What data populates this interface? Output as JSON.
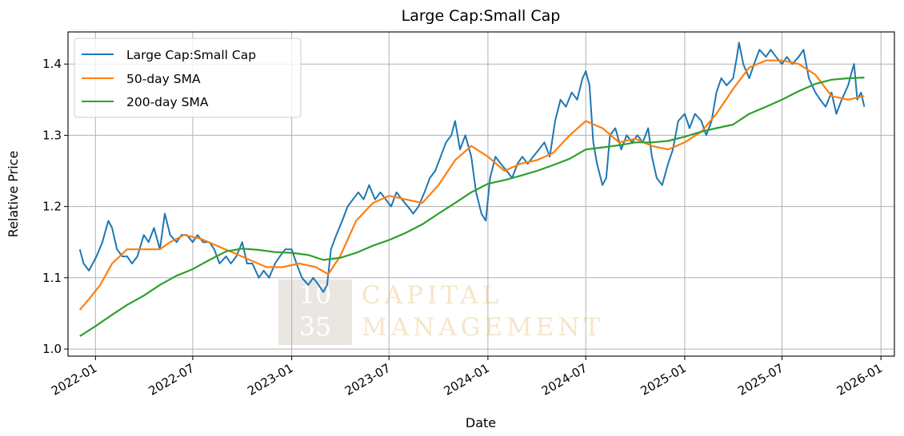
{
  "chart_data": {
    "type": "line",
    "title": "Large Cap:Small Cap",
    "xlabel": "Date",
    "ylabel": "Relative Price",
    "ylim": [
      0.99,
      1.445
    ],
    "xlim": [
      "2021-11-11",
      "2026-01-26"
    ],
    "grid": true,
    "legend_position": "top-left",
    "y_ticks": [
      1.0,
      1.1,
      1.2,
      1.3,
      1.4
    ],
    "y_tick_labels": [
      "1.0",
      "1.1",
      "1.2",
      "1.3",
      "1.4"
    ],
    "x_ticks": [
      "2022-01-01",
      "2022-07-01",
      "2023-01-01",
      "2023-07-01",
      "2024-01-01",
      "2024-07-01",
      "2025-01-01",
      "2025-07-01",
      "2026-01-01"
    ],
    "x_tick_labels": [
      "2022-01",
      "2022-07",
      "2023-01",
      "2023-07",
      "2024-01",
      "2024-07",
      "2025-01",
      "2025-07",
      "2026-01"
    ],
    "watermark": {
      "line1": "10",
      "line2": "35",
      "text1": "CAPITAL",
      "text2": "MANAGEMENT"
    },
    "series": [
      {
        "name": "Large Cap:Small Cap",
        "color": "#1f77b4",
        "points": [
          [
            "2021-12-03",
            1.14
          ],
          [
            "2021-12-10",
            1.12
          ],
          [
            "2021-12-20",
            1.11
          ],
          [
            "2022-01-03",
            1.13
          ],
          [
            "2022-01-14",
            1.15
          ],
          [
            "2022-01-25",
            1.18
          ],
          [
            "2022-02-01",
            1.17
          ],
          [
            "2022-02-10",
            1.14
          ],
          [
            "2022-02-20",
            1.13
          ],
          [
            "2022-03-01",
            1.13
          ],
          [
            "2022-03-10",
            1.12
          ],
          [
            "2022-03-20",
            1.13
          ],
          [
            "2022-04-01",
            1.16
          ],
          [
            "2022-04-10",
            1.15
          ],
          [
            "2022-04-20",
            1.17
          ],
          [
            "2022-05-01",
            1.14
          ],
          [
            "2022-05-10",
            1.19
          ],
          [
            "2022-05-20",
            1.16
          ],
          [
            "2022-06-01",
            1.15
          ],
          [
            "2022-06-10",
            1.16
          ],
          [
            "2022-06-20",
            1.16
          ],
          [
            "2022-07-01",
            1.15
          ],
          [
            "2022-07-10",
            1.16
          ],
          [
            "2022-07-20",
            1.15
          ],
          [
            "2022-08-01",
            1.15
          ],
          [
            "2022-08-10",
            1.14
          ],
          [
            "2022-08-20",
            1.12
          ],
          [
            "2022-09-01",
            1.13
          ],
          [
            "2022-09-10",
            1.12
          ],
          [
            "2022-09-20",
            1.13
          ],
          [
            "2022-10-01",
            1.15
          ],
          [
            "2022-10-10",
            1.12
          ],
          [
            "2022-10-20",
            1.12
          ],
          [
            "2022-11-01",
            1.1
          ],
          [
            "2022-11-10",
            1.11
          ],
          [
            "2022-11-20",
            1.1
          ],
          [
            "2022-12-01",
            1.12
          ],
          [
            "2022-12-10",
            1.13
          ],
          [
            "2022-12-20",
            1.14
          ],
          [
            "2023-01-01",
            1.14
          ],
          [
            "2023-01-10",
            1.12
          ],
          [
            "2023-01-20",
            1.1
          ],
          [
            "2023-02-01",
            1.09
          ],
          [
            "2023-02-10",
            1.1
          ],
          [
            "2023-02-20",
            1.09
          ],
          [
            "2023-03-01",
            1.08
          ],
          [
            "2023-03-08",
            1.09
          ],
          [
            "2023-03-15",
            1.14
          ],
          [
            "2023-03-25",
            1.16
          ],
          [
            "2023-04-05",
            1.18
          ],
          [
            "2023-04-15",
            1.2
          ],
          [
            "2023-04-25",
            1.21
          ],
          [
            "2023-05-05",
            1.22
          ],
          [
            "2023-05-15",
            1.21
          ],
          [
            "2023-05-25",
            1.23
          ],
          [
            "2023-06-05",
            1.21
          ],
          [
            "2023-06-15",
            1.22
          ],
          [
            "2023-06-25",
            1.21
          ],
          [
            "2023-07-05",
            1.2
          ],
          [
            "2023-07-15",
            1.22
          ],
          [
            "2023-07-25",
            1.21
          ],
          [
            "2023-08-05",
            1.2
          ],
          [
            "2023-08-15",
            1.19
          ],
          [
            "2023-08-25",
            1.2
          ],
          [
            "2023-09-05",
            1.22
          ],
          [
            "2023-09-15",
            1.24
          ],
          [
            "2023-09-25",
            1.25
          ],
          [
            "2023-10-05",
            1.27
          ],
          [
            "2023-10-15",
            1.29
          ],
          [
            "2023-10-25",
            1.3
          ],
          [
            "2023-11-01",
            1.32
          ],
          [
            "2023-11-10",
            1.28
          ],
          [
            "2023-11-20",
            1.3
          ],
          [
            "2023-12-01",
            1.27
          ],
          [
            "2023-12-10",
            1.22
          ],
          [
            "2023-12-20",
            1.19
          ],
          [
            "2023-12-28",
            1.18
          ],
          [
            "2024-01-05",
            1.24
          ],
          [
            "2024-01-15",
            1.27
          ],
          [
            "2024-01-25",
            1.26
          ],
          [
            "2024-02-05",
            1.25
          ],
          [
            "2024-02-15",
            1.24
          ],
          [
            "2024-02-25",
            1.26
          ],
          [
            "2024-03-05",
            1.27
          ],
          [
            "2024-03-15",
            1.26
          ],
          [
            "2024-03-25",
            1.27
          ],
          [
            "2024-04-05",
            1.28
          ],
          [
            "2024-04-15",
            1.29
          ],
          [
            "2024-04-25",
            1.27
          ],
          [
            "2024-05-05",
            1.32
          ],
          [
            "2024-05-15",
            1.35
          ],
          [
            "2024-05-25",
            1.34
          ],
          [
            "2024-06-05",
            1.36
          ],
          [
            "2024-06-15",
            1.35
          ],
          [
            "2024-06-25",
            1.38
          ],
          [
            "2024-07-01",
            1.39
          ],
          [
            "2024-07-08",
            1.37
          ],
          [
            "2024-07-15",
            1.29
          ],
          [
            "2024-07-22",
            1.26
          ],
          [
            "2024-08-01",
            1.23
          ],
          [
            "2024-08-08",
            1.24
          ],
          [
            "2024-08-15",
            1.3
          ],
          [
            "2024-08-25",
            1.31
          ],
          [
            "2024-09-05",
            1.28
          ],
          [
            "2024-09-15",
            1.3
          ],
          [
            "2024-09-25",
            1.29
          ],
          [
            "2024-10-05",
            1.3
          ],
          [
            "2024-10-15",
            1.29
          ],
          [
            "2024-10-25",
            1.31
          ],
          [
            "2024-11-01",
            1.27
          ],
          [
            "2024-11-10",
            1.24
          ],
          [
            "2024-11-20",
            1.23
          ],
          [
            "2024-12-01",
            1.26
          ],
          [
            "2024-12-10",
            1.28
          ],
          [
            "2024-12-20",
            1.32
          ],
          [
            "2025-01-01",
            1.33
          ],
          [
            "2025-01-10",
            1.31
          ],
          [
            "2025-01-20",
            1.33
          ],
          [
            "2025-02-01",
            1.32
          ],
          [
            "2025-02-10",
            1.3
          ],
          [
            "2025-02-20",
            1.32
          ],
          [
            "2025-03-01",
            1.36
          ],
          [
            "2025-03-10",
            1.38
          ],
          [
            "2025-03-20",
            1.37
          ],
          [
            "2025-04-01",
            1.38
          ],
          [
            "2025-04-08",
            1.41
          ],
          [
            "2025-04-12",
            1.43
          ],
          [
            "2025-04-20",
            1.4
          ],
          [
            "2025-05-01",
            1.38
          ],
          [
            "2025-05-10",
            1.4
          ],
          [
            "2025-05-20",
            1.42
          ],
          [
            "2025-06-01",
            1.41
          ],
          [
            "2025-06-10",
            1.42
          ],
          [
            "2025-06-20",
            1.41
          ],
          [
            "2025-07-01",
            1.4
          ],
          [
            "2025-07-10",
            1.41
          ],
          [
            "2025-07-20",
            1.4
          ],
          [
            "2025-08-01",
            1.41
          ],
          [
            "2025-08-10",
            1.42
          ],
          [
            "2025-08-20",
            1.38
          ],
          [
            "2025-09-01",
            1.36
          ],
          [
            "2025-09-10",
            1.35
          ],
          [
            "2025-09-20",
            1.34
          ],
          [
            "2025-10-01",
            1.36
          ],
          [
            "2025-10-10",
            1.33
          ],
          [
            "2025-10-20",
            1.35
          ],
          [
            "2025-11-01",
            1.37
          ],
          [
            "2025-11-08",
            1.39
          ],
          [
            "2025-11-12",
            1.4
          ],
          [
            "2025-11-18",
            1.35
          ],
          [
            "2025-11-25",
            1.36
          ],
          [
            "2025-12-01",
            1.34
          ]
        ]
      },
      {
        "name": "50-day SMA",
        "color": "#ff7f0e",
        "points": [
          [
            "2021-12-03",
            1.055
          ],
          [
            "2021-12-20",
            1.07
          ],
          [
            "2022-01-10",
            1.09
          ],
          [
            "2022-02-01",
            1.12
          ],
          [
            "2022-03-01",
            1.14
          ],
          [
            "2022-04-01",
            1.14
          ],
          [
            "2022-05-01",
            1.14
          ],
          [
            "2022-05-20",
            1.15
          ],
          [
            "2022-06-15",
            1.16
          ],
          [
            "2022-07-15",
            1.155
          ],
          [
            "2022-08-15",
            1.145
          ],
          [
            "2022-09-15",
            1.135
          ],
          [
            "2022-10-15",
            1.125
          ],
          [
            "2022-11-15",
            1.115
          ],
          [
            "2022-12-15",
            1.115
          ],
          [
            "2023-01-15",
            1.12
          ],
          [
            "2023-02-15",
            1.115
          ],
          [
            "2023-03-10",
            1.105
          ],
          [
            "2023-04-01",
            1.13
          ],
          [
            "2023-05-01",
            1.18
          ],
          [
            "2023-06-01",
            1.205
          ],
          [
            "2023-07-01",
            1.215
          ],
          [
            "2023-08-01",
            1.21
          ],
          [
            "2023-09-01",
            1.205
          ],
          [
            "2023-10-01",
            1.23
          ],
          [
            "2023-11-01",
            1.265
          ],
          [
            "2023-12-01",
            1.285
          ],
          [
            "2024-01-01",
            1.27
          ],
          [
            "2024-02-01",
            1.25
          ],
          [
            "2024-03-01",
            1.26
          ],
          [
            "2024-04-01",
            1.265
          ],
          [
            "2024-05-01",
            1.275
          ],
          [
            "2024-06-01",
            1.3
          ],
          [
            "2024-07-01",
            1.32
          ],
          [
            "2024-08-01",
            1.31
          ],
          [
            "2024-09-01",
            1.29
          ],
          [
            "2024-10-01",
            1.295
          ],
          [
            "2024-11-01",
            1.285
          ],
          [
            "2024-12-01",
            1.28
          ],
          [
            "2025-01-01",
            1.29
          ],
          [
            "2025-02-01",
            1.305
          ],
          [
            "2025-03-01",
            1.33
          ],
          [
            "2025-04-01",
            1.365
          ],
          [
            "2025-05-01",
            1.395
          ],
          [
            "2025-06-01",
            1.405
          ],
          [
            "2025-07-01",
            1.405
          ],
          [
            "2025-08-01",
            1.4
          ],
          [
            "2025-09-01",
            1.385
          ],
          [
            "2025-10-01",
            1.355
          ],
          [
            "2025-11-01",
            1.35
          ],
          [
            "2025-12-01",
            1.355
          ]
        ]
      },
      {
        "name": "200-day SMA",
        "color": "#2ca02c",
        "points": [
          [
            "2021-12-03",
            1.018
          ],
          [
            "2022-01-01",
            1.032
          ],
          [
            "2022-02-01",
            1.048
          ],
          [
            "2022-03-01",
            1.062
          ],
          [
            "2022-04-01",
            1.075
          ],
          [
            "2022-05-01",
            1.09
          ],
          [
            "2022-06-01",
            1.103
          ],
          [
            "2022-07-01",
            1.112
          ],
          [
            "2022-08-01",
            1.125
          ],
          [
            "2022-09-01",
            1.137
          ],
          [
            "2022-10-01",
            1.141
          ],
          [
            "2022-11-01",
            1.139
          ],
          [
            "2022-12-01",
            1.136
          ],
          [
            "2023-01-01",
            1.135
          ],
          [
            "2023-02-01",
            1.132
          ],
          [
            "2023-03-01",
            1.125
          ],
          [
            "2023-04-01",
            1.128
          ],
          [
            "2023-05-01",
            1.135
          ],
          [
            "2023-06-01",
            1.145
          ],
          [
            "2023-07-01",
            1.153
          ],
          [
            "2023-08-01",
            1.163
          ],
          [
            "2023-09-01",
            1.175
          ],
          [
            "2023-10-01",
            1.19
          ],
          [
            "2023-11-01",
            1.205
          ],
          [
            "2023-12-01",
            1.22
          ],
          [
            "2024-01-01",
            1.232
          ],
          [
            "2024-02-01",
            1.237
          ],
          [
            "2024-03-01",
            1.243
          ],
          [
            "2024-04-01",
            1.25
          ],
          [
            "2024-05-01",
            1.258
          ],
          [
            "2024-06-01",
            1.267
          ],
          [
            "2024-07-01",
            1.28
          ],
          [
            "2024-08-01",
            1.283
          ],
          [
            "2024-09-01",
            1.286
          ],
          [
            "2024-10-01",
            1.29
          ],
          [
            "2024-11-01",
            1.29
          ],
          [
            "2024-12-01",
            1.292
          ],
          [
            "2025-01-01",
            1.298
          ],
          [
            "2025-02-01",
            1.305
          ],
          [
            "2025-03-01",
            1.31
          ],
          [
            "2025-04-01",
            1.315
          ],
          [
            "2025-05-01",
            1.33
          ],
          [
            "2025-06-01",
            1.34
          ],
          [
            "2025-07-01",
            1.35
          ],
          [
            "2025-08-01",
            1.362
          ],
          [
            "2025-09-01",
            1.372
          ],
          [
            "2025-10-01",
            1.378
          ],
          [
            "2025-11-01",
            1.38
          ],
          [
            "2025-12-01",
            1.381
          ]
        ]
      }
    ]
  }
}
